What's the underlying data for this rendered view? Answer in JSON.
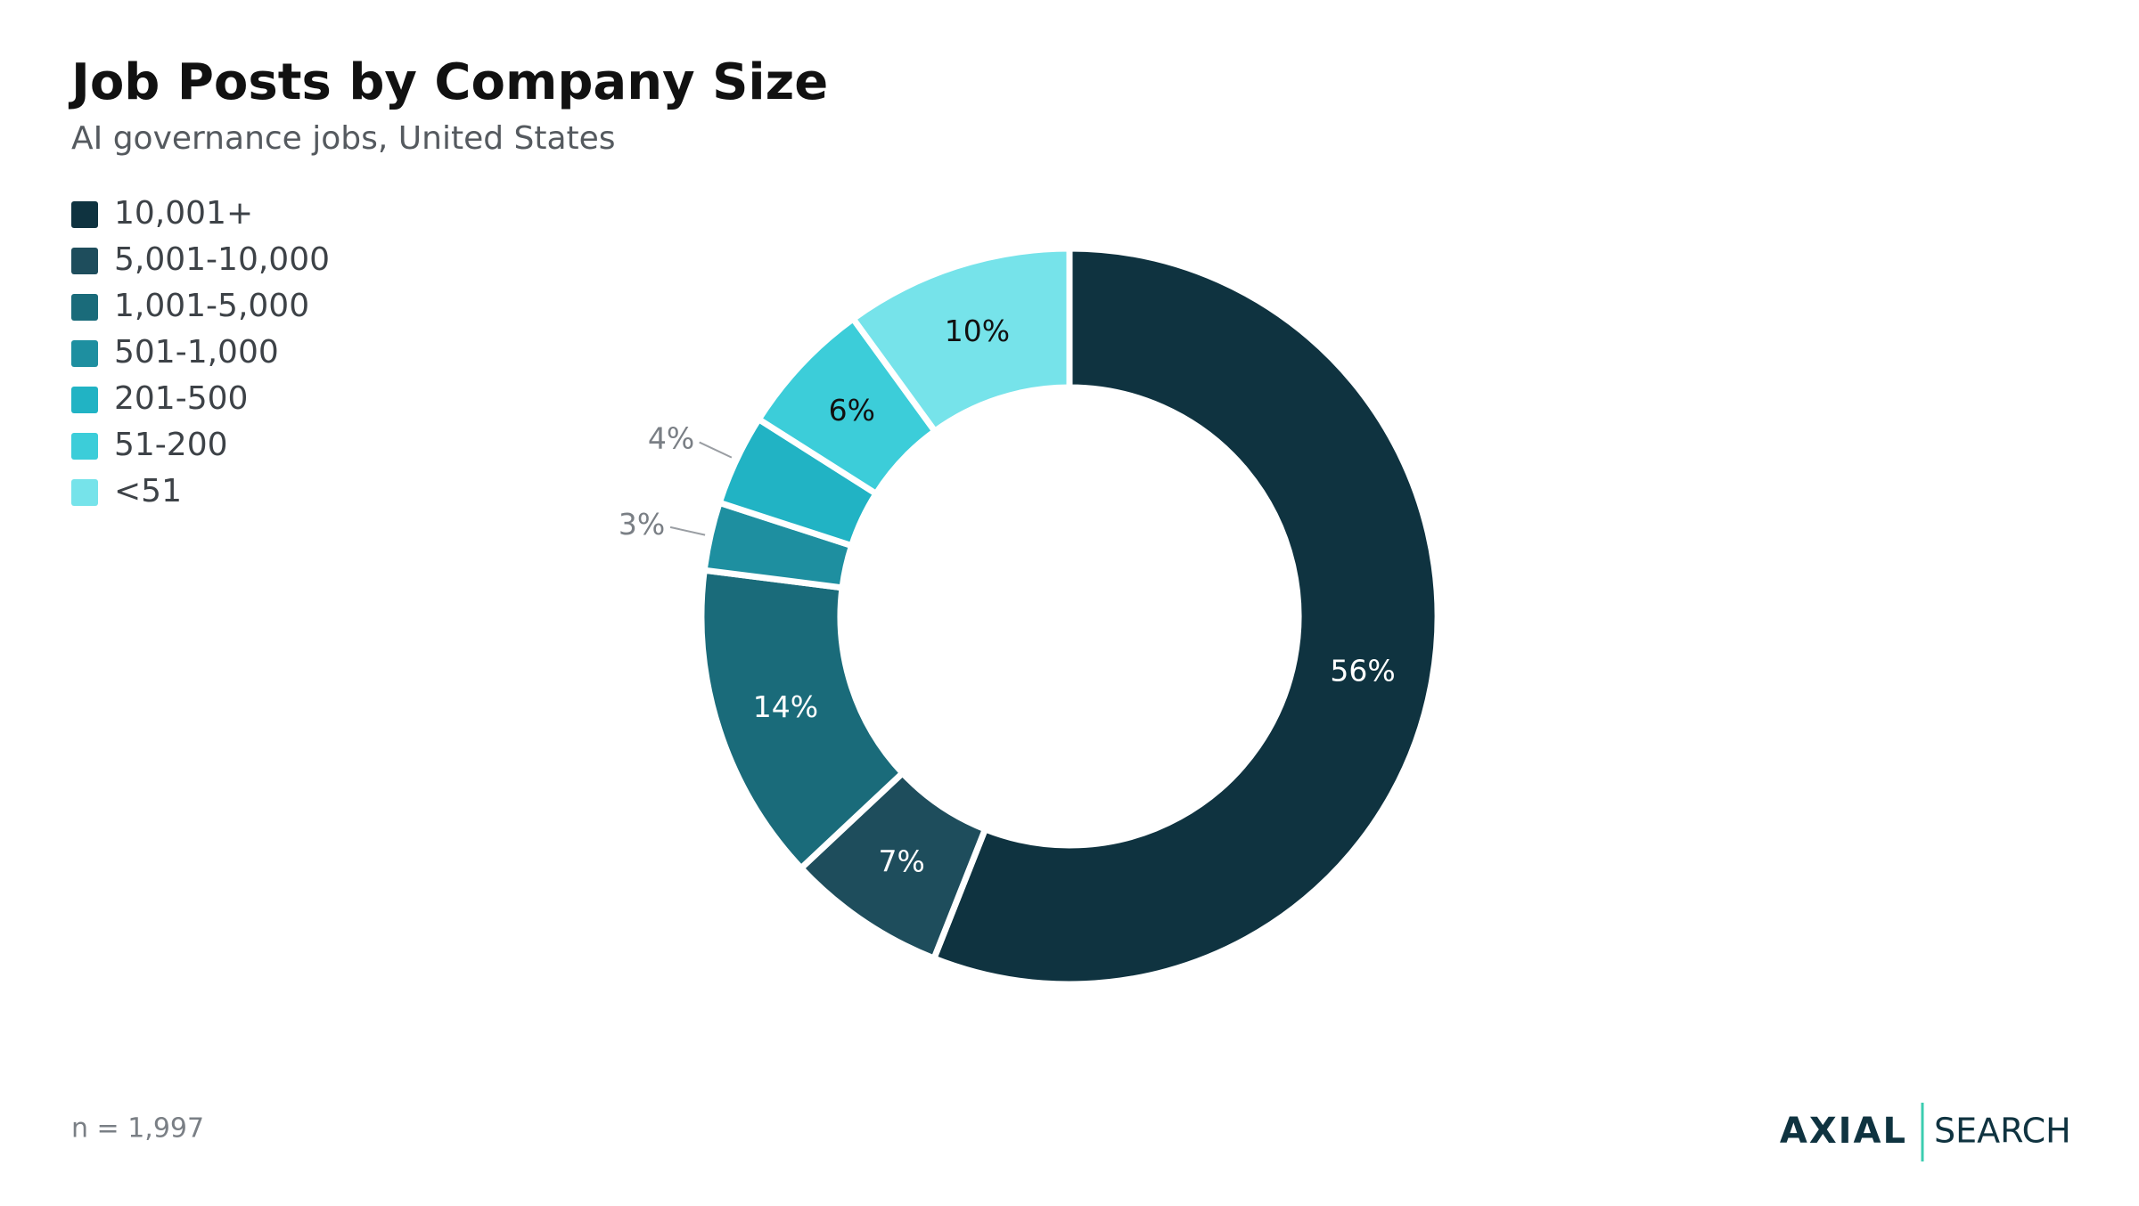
{
  "chart_data": {
    "type": "donut",
    "title": "Job Posts by Company Size",
    "subtitle": "AI governance jobs, United States",
    "categories": [
      "10,001+",
      "5,001-10,000",
      "1,001-5,000",
      "501-1,000",
      "201-500",
      "51-200",
      "<51"
    ],
    "values": [
      56,
      7,
      14,
      3,
      4,
      6,
      10
    ],
    "value_labels": [
      "56%",
      "7%",
      "14%",
      "3%",
      "4%",
      "6%",
      "10%"
    ],
    "colors": [
      "#0f3340",
      "#1e4d5c",
      "#1a6b7a",
      "#1e8fa0",
      "#21b3c4",
      "#3ccdd9",
      "#76e3ea"
    ],
    "legend": "top-left",
    "note": "n = 1,997"
  },
  "brand": {
    "logo": "AXIAL",
    "product": "SEARCH"
  }
}
